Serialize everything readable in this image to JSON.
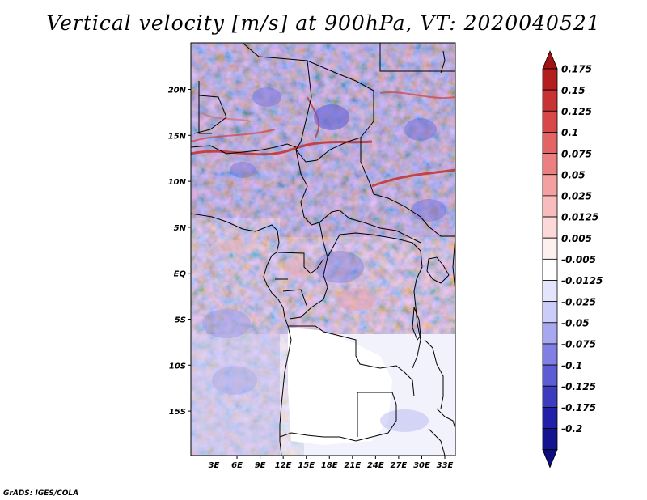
{
  "title": "Vertical velocity [m/s] at 900hPa, VT: 2020040521",
  "credit": "GrADS: IGES/COLA",
  "map": {
    "lon_range": [
      0,
      35
    ],
    "lat_range": [
      -20,
      25
    ],
    "lon_ticks": [
      "3E",
      "6E",
      "9E",
      "12E",
      "15E",
      "18E",
      "21E",
      "24E",
      "27E",
      "30E",
      "33E"
    ],
    "lat_ticks": [
      "20N",
      "15N",
      "10N",
      "5N",
      "EQ",
      "5S",
      "10S",
      "15S"
    ],
    "field": "vertical velocity",
    "level": "900hPa"
  },
  "colorbar": {
    "labels": [
      "0.175",
      "0.15",
      "0.125",
      "0.1",
      "0.075",
      "0.05",
      "0.025",
      "0.0125",
      "0.005",
      "-0.005",
      "-0.0125",
      "-0.025",
      "-0.05",
      "-0.075",
      "-0.1",
      "-0.125",
      "-0.175",
      "-0.2"
    ],
    "colors": [
      "#b41e1e",
      "#c83232",
      "#d84848",
      "#e46464",
      "#ec8080",
      "#f4a0a0",
      "#f8bcbc",
      "#fcd8d8",
      "#fff0f0",
      "#ffffff",
      "#e4e4fc",
      "#ccccf8",
      "#a8a8f0",
      "#8080e4",
      "#5c5cd4",
      "#3c3cc0",
      "#2020a8",
      "#141490"
    ],
    "top_arrow_color": "#a01414",
    "bottom_arrow_color": "#0c0c80"
  }
}
